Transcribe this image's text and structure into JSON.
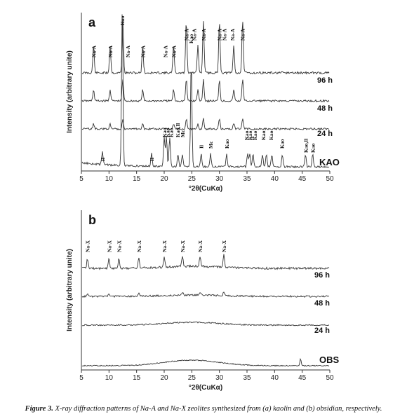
{
  "chart_data": [
    {
      "panel": "a",
      "type": "line",
      "xlabel": "°2θ(CuKα)",
      "ylabel": "Intensity (arbitrary unite)",
      "xlim": [
        5,
        50
      ],
      "xticks": [
        5,
        10,
        15,
        20,
        25,
        30,
        35,
        40,
        45,
        50
      ],
      "series": [
        {
          "name": "96 h",
          "peaks": [
            7.2,
            10.2,
            12.5,
            16.1,
            21.7,
            24.0,
            26.1,
            27.1,
            30.0,
            32.6,
            34.2
          ]
        },
        {
          "name": "48 h",
          "peaks": [
            7.2,
            10.2,
            12.5,
            16.1,
            21.7,
            24.0,
            26.1,
            27.1,
            30.0,
            32.6,
            34.2
          ]
        },
        {
          "name": "24 h",
          "peaks": [
            7.2,
            10.2,
            12.5,
            16.1,
            21.7,
            24.0,
            26.1,
            27.1,
            30.0,
            32.6,
            34.2
          ]
        },
        {
          "name": "KAO",
          "peaks": [
            8.8,
            12.4,
            17.7,
            20.0,
            20.4,
            21.0,
            22.5,
            23.3,
            24.9,
            26.7,
            28.4,
            31.3,
            35.1,
            35.5,
            36.1,
            37.8,
            38.5,
            39.5,
            41.4,
            45.6,
            46.9
          ]
        }
      ],
      "annotations": [
        {
          "text": "Na-A",
          "x": 7.2
        },
        {
          "text": "Na-A",
          "x": 10.2
        },
        {
          "text": "Kao",
          "x": 12.4
        },
        {
          "text": "Na-A",
          "x": 13.4
        },
        {
          "text": "Na-A",
          "x": 16.1
        },
        {
          "text": "Na-A",
          "x": 20.2
        },
        {
          "text": "Na-A",
          "x": 21.7
        },
        {
          "text": "Na-A",
          "x": 24.0
        },
        {
          "text": "Kao",
          "x": 24.8
        },
        {
          "text": "Na-A",
          "x": 25.4
        },
        {
          "text": "Na-A",
          "x": 27.1
        },
        {
          "text": "Na-A",
          "x": 30.0
        },
        {
          "text": "Na-A",
          "x": 30.9
        },
        {
          "text": "Na-A",
          "x": 32.3
        },
        {
          "text": "Na-A",
          "x": 34.2
        },
        {
          "text": "Il",
          "x": 8.8
        },
        {
          "text": "Il",
          "x": 17.7
        },
        {
          "text": "Kao",
          "x": 20.0
        },
        {
          "text": "Kao",
          "x": 20.6
        },
        {
          "text": "Kao",
          "x": 21.2
        },
        {
          "text": "Kao,Il",
          "x": 22.4
        },
        {
          "text": "Mc",
          "x": 23.3
        },
        {
          "text": "Il",
          "x": 26.7
        },
        {
          "text": "Mc",
          "x": 28.4
        },
        {
          "text": "Kao",
          "x": 31.3
        },
        {
          "text": "Kao",
          "x": 34.9
        },
        {
          "text": "Kao",
          "x": 35.5
        },
        {
          "text": "Il",
          "x": 35.9
        },
        {
          "text": "Kao",
          "x": 36.4
        },
        {
          "text": "Kao",
          "x": 37.9
        },
        {
          "text": "Kao",
          "x": 39.3
        },
        {
          "text": "Kao",
          "x": 41.3
        },
        {
          "text": "Kao,Il",
          "x": 45.6
        },
        {
          "text": "Kao",
          "x": 46.9
        }
      ]
    },
    {
      "panel": "b",
      "type": "line",
      "xlabel": "°2θ(CuKα)",
      "ylabel": "Intensity (arbitrary unite)",
      "xlim": [
        5,
        50
      ],
      "xticks": [
        5,
        10,
        15,
        20,
        25,
        30,
        35,
        40,
        45,
        50
      ],
      "series": [
        {
          "name": "96 h",
          "peaks": [
            6.1,
            10.0,
            11.8,
            15.4,
            20.0,
            23.3,
            26.5,
            30.8
          ]
        },
        {
          "name": "48 h",
          "peaks": [
            6.1,
            10.0,
            15.4,
            23.3,
            26.5,
            30.8
          ]
        },
        {
          "name": "24 h",
          "peaks": []
        },
        {
          "name": "OBS",
          "peaks": [
            44.7
          ]
        }
      ],
      "annotations": [
        {
          "text": "Na-X",
          "x": 6.1
        },
        {
          "text": "Na-X",
          "x": 10.0
        },
        {
          "text": "Na-X",
          "x": 11.8
        },
        {
          "text": "Na-X",
          "x": 15.4
        },
        {
          "text": "Na-X",
          "x": 20.0
        },
        {
          "text": "Na-X",
          "x": 23.3
        },
        {
          "text": "Na-X",
          "x": 26.5
        },
        {
          "text": "Na-X",
          "x": 30.8
        }
      ]
    }
  ],
  "caption": {
    "label": "Figure 3.",
    "text": " X-ray diffraction patterns of Na-A and Na-X zeolites synthesized from (a) kaolin and (b) obsidian, respectively."
  }
}
